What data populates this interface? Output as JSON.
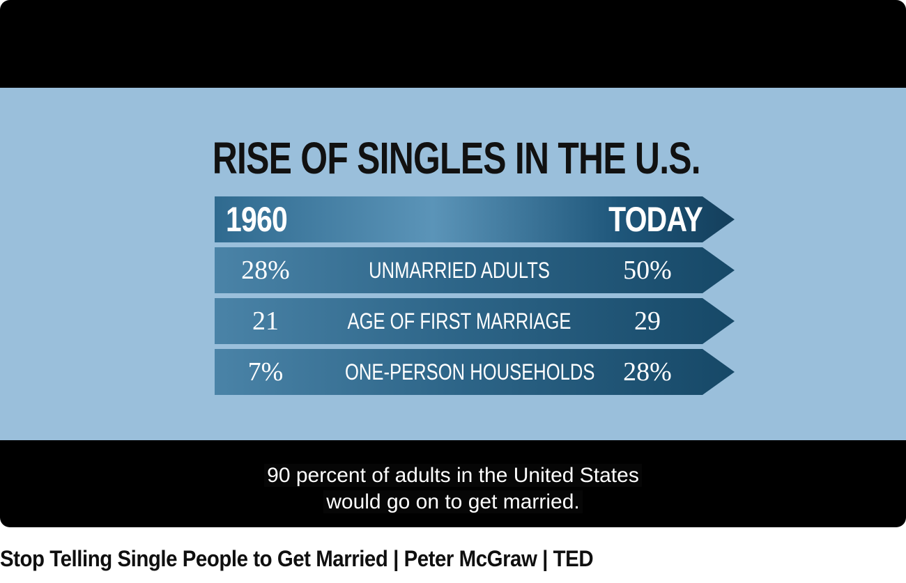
{
  "slide": {
    "title": "RISE OF SINGLES IN THE U.S.",
    "header": {
      "left": "1960",
      "right": "TODAY"
    },
    "rows": [
      {
        "left": "28%",
        "label": "UNMARRIED ADULTS",
        "right": "50%"
      },
      {
        "left": "21",
        "label": "AGE OF FIRST MARRIAGE",
        "right": "29"
      },
      {
        "left": "7%",
        "label": "ONE-PERSON HOUSEHOLDS",
        "right": "28%"
      }
    ]
  },
  "captions": {
    "line1": "90 percent of adults in the United States",
    "line2": "would go on to get married."
  },
  "video": {
    "title": "Stop Telling Single People to Get Married | Peter McGraw | TED"
  },
  "colors": {
    "slide_background": "#9abfdb",
    "arrow_dark": "#164867",
    "arrow_light": "#4a83a7",
    "letterbox": "#000000"
  }
}
